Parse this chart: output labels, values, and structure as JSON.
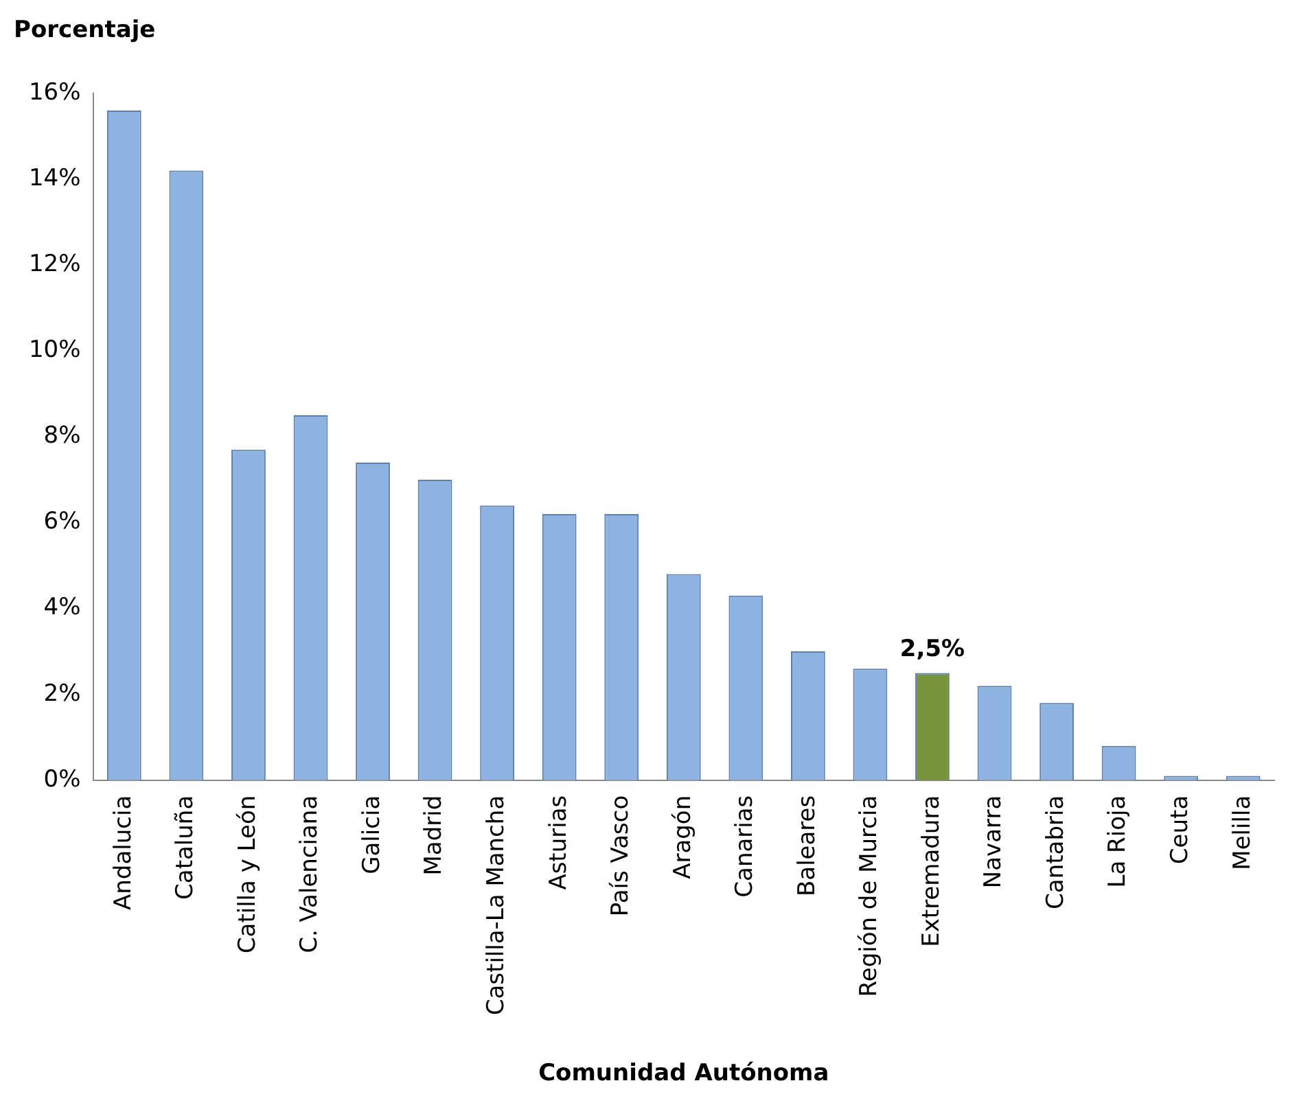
{
  "chart_data": {
    "type": "bar",
    "xlabel": "Comunidad Autónoma",
    "ylabel": "Porcentaje",
    "categories": [
      "Andalucia",
      "Cataluña",
      "Catilla y León",
      "C. Valenciana",
      "Galicia",
      "Madrid",
      "Castilla-La Mancha",
      "Asturias",
      "País Vasco",
      "Aragón",
      "Canarias",
      "Baleares",
      "Región de Murcia",
      "Extremadura",
      "Navarra",
      "Cantabria",
      "La Rioja",
      "Ceuta",
      "Melilla"
    ],
    "values": [
      15.6,
      14.2,
      7.7,
      8.5,
      7.4,
      7.0,
      6.4,
      6.2,
      6.2,
      4.8,
      4.3,
      3.0,
      2.6,
      2.5,
      2.2,
      1.8,
      0.8,
      0.1,
      0.1
    ],
    "colors": [
      "#8db3e2",
      "#8db3e2",
      "#8db3e2",
      "#8db3e2",
      "#8db3e2",
      "#8db3e2",
      "#8db3e2",
      "#8db3e2",
      "#8db3e2",
      "#8db3e2",
      "#8db3e2",
      "#8db3e2",
      "#8db3e2",
      "#77933c",
      "#8db3e2",
      "#8db3e2",
      "#8db3e2",
      "#8db3e2",
      "#8db3e2"
    ],
    "value_labels": [
      null,
      null,
      null,
      null,
      null,
      null,
      null,
      null,
      null,
      null,
      null,
      null,
      null,
      "2,5%",
      null,
      null,
      null,
      null,
      null
    ],
    "ylim": [
      0,
      16
    ],
    "yticks": [
      {
        "value": 0,
        "label": "0%"
      },
      {
        "value": 2,
        "label": "2%"
      },
      {
        "value": 4,
        "label": "4%"
      },
      {
        "value": 6,
        "label": "6%"
      },
      {
        "value": 8,
        "label": "8%"
      },
      {
        "value": 10,
        "label": "10%"
      },
      {
        "value": 12,
        "label": "12%"
      },
      {
        "value": 14,
        "label": "14%"
      },
      {
        "value": 16,
        "label": "16%"
      }
    ],
    "grid": false,
    "legend": false
  }
}
